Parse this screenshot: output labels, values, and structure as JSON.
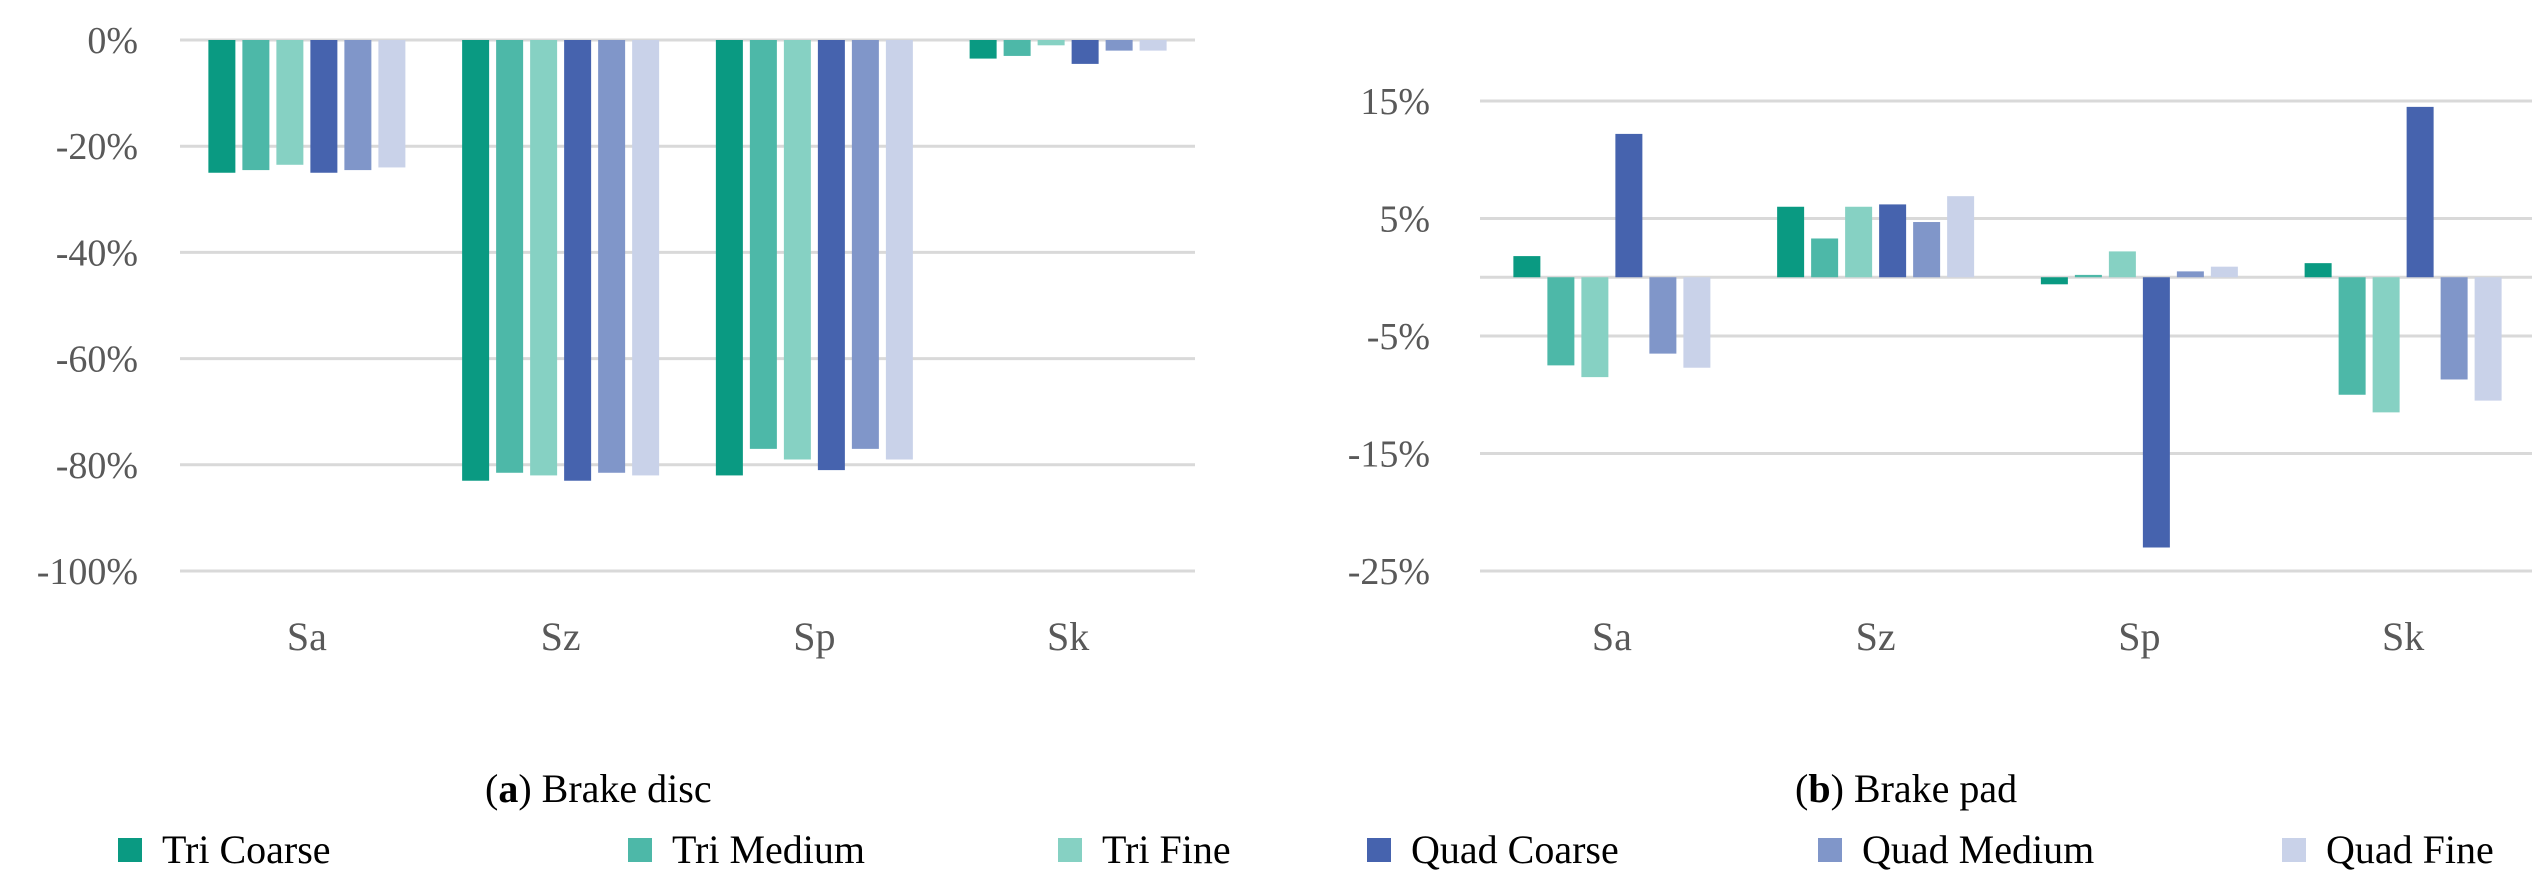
{
  "chart_data": [
    {
      "type": "bar",
      "caption_letter": "a",
      "caption_text": ") Brake disc",
      "categories": [
        "Sa",
        "Sz",
        "Sp",
        "Sk"
      ],
      "ylim": [
        -100,
        0
      ],
      "yticks": [
        0,
        -20,
        -40,
        -60,
        -80,
        -100
      ],
      "ytick_labels": [
        "0%",
        "-20%",
        "-40%",
        "-60%",
        "-80%",
        "-100%"
      ],
      "series": [
        {
          "name": "Tri Coarse",
          "values": [
            -25,
            -83,
            -82,
            -3.5
          ]
        },
        {
          "name": "Tri Medium",
          "values": [
            -24.5,
            -81.5,
            -77,
            -3
          ]
        },
        {
          "name": "Tri Fine",
          "values": [
            -23.5,
            -82,
            -79,
            -1
          ]
        },
        {
          "name": "Quad Coarse",
          "values": [
            -25,
            -83,
            -81,
            -4.5
          ]
        },
        {
          "name": "Quad Medium",
          "values": [
            -24.5,
            -81.5,
            -77,
            -2
          ]
        },
        {
          "name": "Quad Fine",
          "values": [
            -24,
            -82,
            -79,
            -2
          ]
        }
      ]
    },
    {
      "type": "bar",
      "caption_letter": "b",
      "caption_text": ") Brake pad",
      "categories": [
        "Sa",
        "Sz",
        "Sp",
        "Sk"
      ],
      "ylim": [
        -25,
        20
      ],
      "yticks": [
        15,
        5,
        -5,
        -15,
        -25
      ],
      "ytick_labels": [
        "15%",
        "5%",
        "-5%",
        "-15%",
        "-25%"
      ],
      "series": [
        {
          "name": "Tri Coarse",
          "values": [
            1.8,
            6,
            -0.6,
            1.2
          ]
        },
        {
          "name": "Tri Medium",
          "values": [
            -7.5,
            3.3,
            0.2,
            -10
          ]
        },
        {
          "name": "Tri Fine",
          "values": [
            -8.5,
            6,
            2.2,
            -11.5
          ]
        },
        {
          "name": "Quad Coarse",
          "values": [
            12.2,
            6.2,
            -23,
            14.5
          ]
        },
        {
          "name": "Quad Medium",
          "values": [
            -6.5,
            4.7,
            0.5,
            -8.7
          ]
        },
        {
          "name": "Quad Fine",
          "values": [
            -7.7,
            6.9,
            0.9,
            -10.5
          ]
        }
      ]
    }
  ],
  "legend": {
    "items": [
      "Tri Coarse",
      "Tri Medium",
      "Tri Fine",
      "Quad Coarse",
      "Quad Medium",
      "Quad Fine"
    ],
    "colors": [
      "#0a9a82",
      "#4db8a8",
      "#86d1c3",
      "#4663ae",
      "#8096c9",
      "#c9d2e9"
    ]
  }
}
